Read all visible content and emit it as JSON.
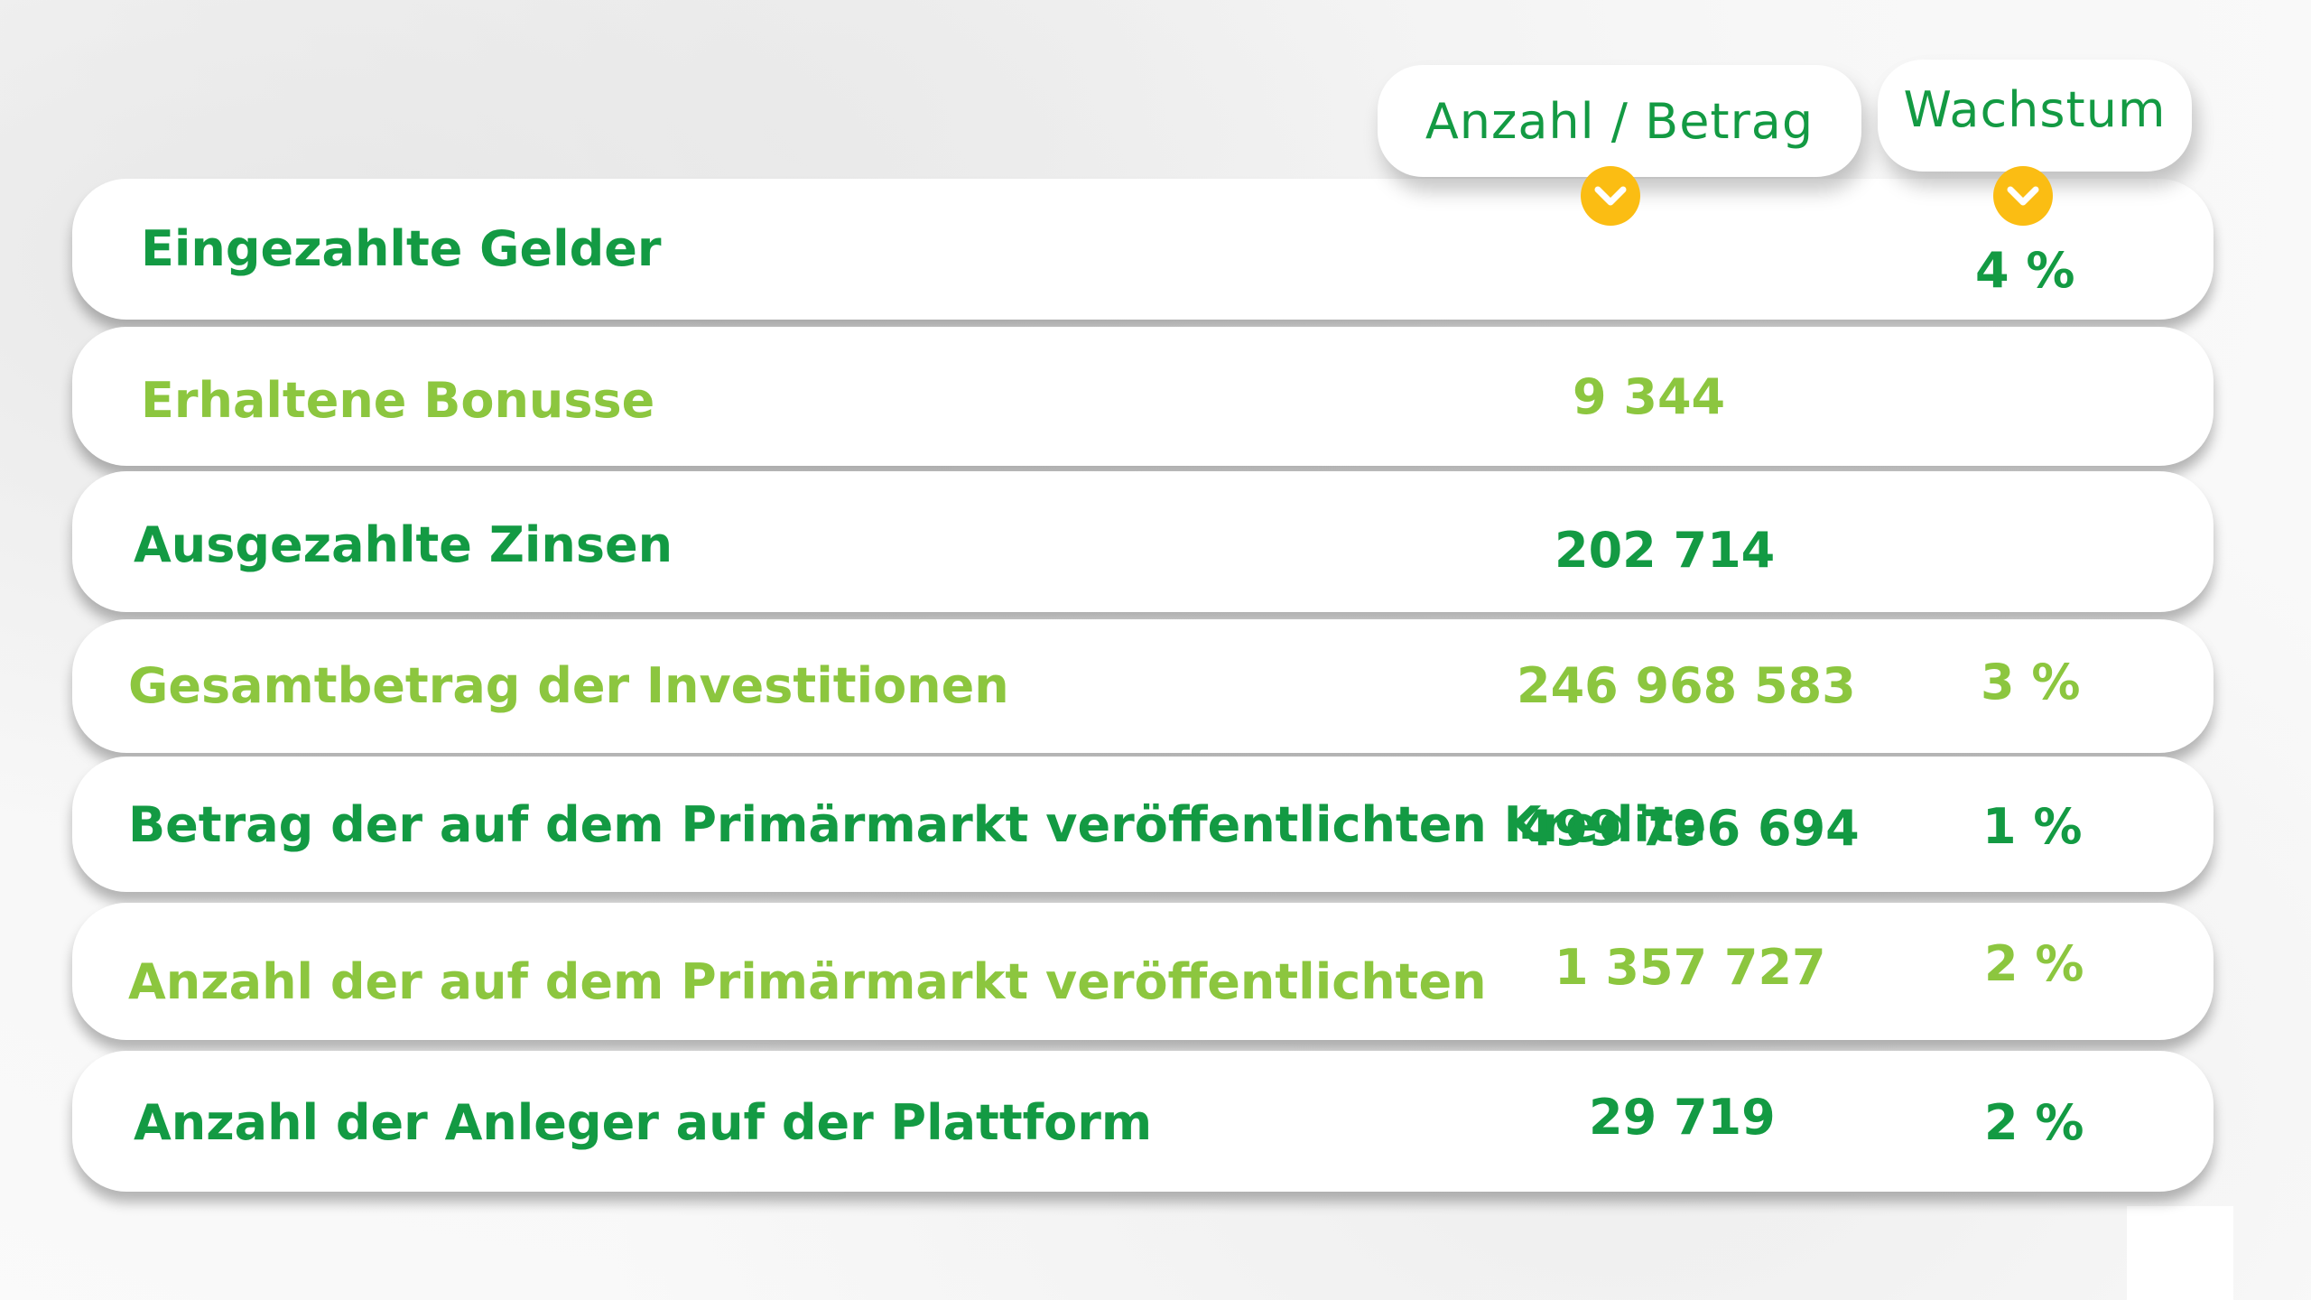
{
  "header": {
    "amount_label": "Anzahl / Betrag",
    "growth_label": "Wachstum"
  },
  "icons": {
    "badge_color": "#fbbd13",
    "amount_icon": "chevron-down-icon",
    "growth_icon": "chevron-down-icon"
  },
  "colors": {
    "dark_green": "#139a43",
    "light_green": "#8cc63f"
  },
  "rows": [
    {
      "label": "Eingezahlte Gelder",
      "value": "",
      "growth": "4 %"
    },
    {
      "label": "Erhaltene Bonusse",
      "value": "9 344",
      "growth": ""
    },
    {
      "label": "Ausgezahlte Zinsen",
      "value": "202 714",
      "growth": ""
    },
    {
      "label": "Gesamtbetrag der Investitionen",
      "value": "246 968 583",
      "growth": "3 %"
    },
    {
      "label": "Betrag der auf dem Primärmarkt veröffentlichten Kredite",
      "value": "499 796 694",
      "growth": "1 %"
    },
    {
      "label": "Anzahl der auf dem Primärmarkt veröffentlichten",
      "value": "1 357 727",
      "growth": "2 %"
    },
    {
      "label": "Anzahl der Anleger auf der Plattform",
      "value": "29 719",
      "growth": "2 %"
    }
  ]
}
